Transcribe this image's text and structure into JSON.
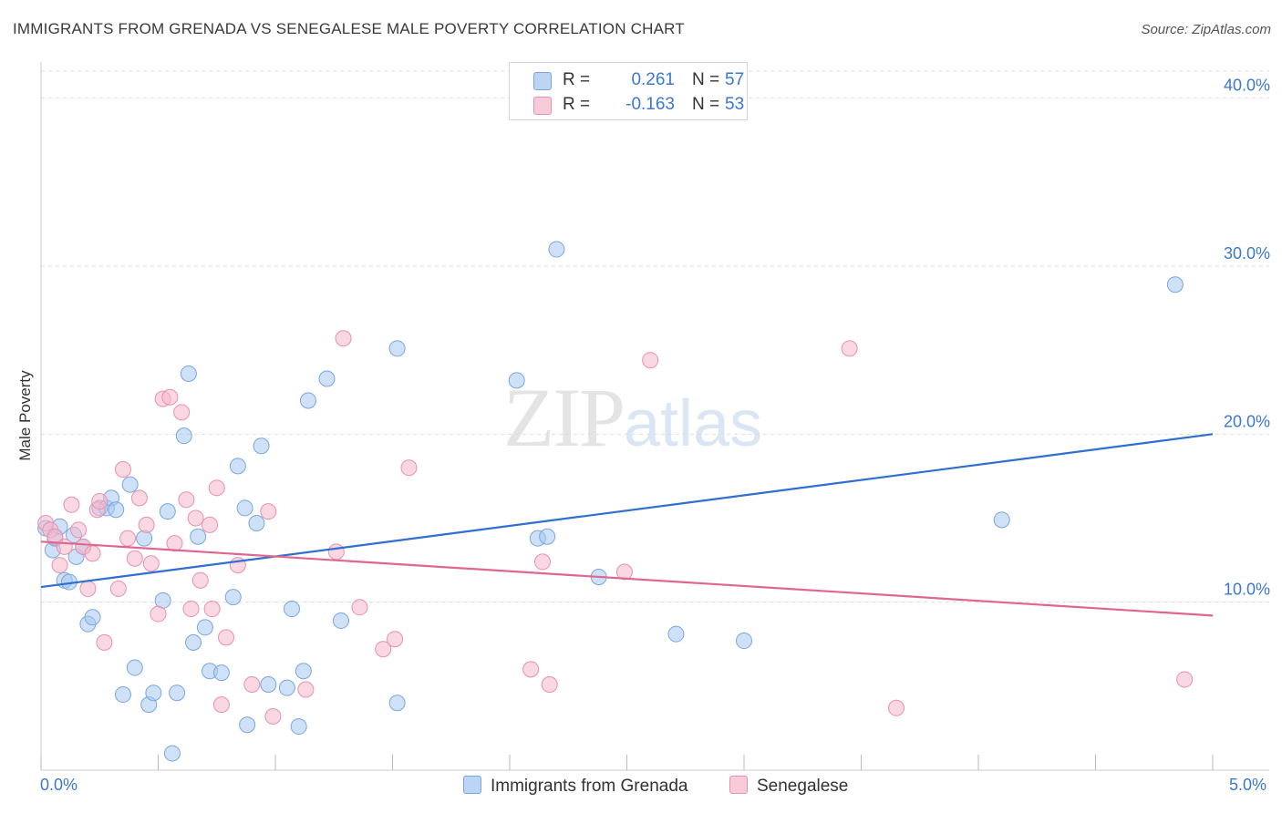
{
  "title": "IMMIGRANTS FROM GRENADA VS SENEGALESE MALE POVERTY CORRELATION CHART",
  "source": "Source: ZipAtlas.com",
  "watermark": {
    "zip": "ZIP",
    "atlas": "atlas"
  },
  "legend_top": [
    {
      "r_label": "R =",
      "r_value": "0.261",
      "n_label": "N =",
      "n_value": "57"
    },
    {
      "r_label": "R =",
      "r_value": "-0.163",
      "n_label": "N =",
      "n_value": "53"
    }
  ],
  "chart_data": {
    "type": "scatter",
    "title": "IMMIGRANTS FROM GRENADA VS SENEGALESE MALE POVERTY CORRELATION CHART",
    "xlabel": "",
    "ylabel": "Male Poverty",
    "xlim": [
      0,
      5.0
    ],
    "ylim": [
      0,
      41.5
    ],
    "x_tick_labels": [
      "0.0%",
      "5.0%"
    ],
    "y_ticks": [
      10,
      20,
      30,
      40
    ],
    "y_tick_labels": [
      "10.0%",
      "20.0%",
      "30.0%",
      "40.0%"
    ],
    "grid": true,
    "legend_position": "bottom-center",
    "colors": {
      "series1_fill": "#a8c8f0",
      "series1_stroke": "#7aa6dc",
      "series1_line": "#2e6fd0",
      "series2_fill": "#f6b8cc",
      "series2_stroke": "#e890ae",
      "series2_line": "#e0668f",
      "tick_label": "#3b78d0",
      "grid": "#dcdcdc"
    },
    "series": [
      {
        "name": "Immigrants from Grenada",
        "r": 0.261,
        "n": 57,
        "trend": {
          "x": [
            0,
            5.0
          ],
          "y": [
            10.9,
            20.0
          ]
        },
        "points": [
          [
            0.02,
            14.4
          ],
          [
            0.05,
            13.1
          ],
          [
            0.06,
            13.8
          ],
          [
            0.08,
            14.5
          ],
          [
            0.1,
            11.3
          ],
          [
            0.12,
            11.2
          ],
          [
            0.15,
            12.7
          ],
          [
            0.18,
            13.3
          ],
          [
            0.2,
            8.7
          ],
          [
            0.22,
            9.1
          ],
          [
            0.25,
            15.6
          ],
          [
            0.28,
            15.6
          ],
          [
            0.3,
            16.2
          ],
          [
            0.32,
            15.5
          ],
          [
            0.35,
            4.5
          ],
          [
            0.38,
            17.0
          ],
          [
            0.4,
            6.1
          ],
          [
            0.44,
            13.8
          ],
          [
            0.46,
            3.9
          ],
          [
            0.48,
            4.6
          ],
          [
            0.52,
            10.1
          ],
          [
            0.54,
            15.4
          ],
          [
            0.56,
            1.0
          ],
          [
            0.58,
            4.6
          ],
          [
            0.61,
            19.9
          ],
          [
            0.63,
            23.6
          ],
          [
            0.65,
            7.6
          ],
          [
            0.67,
            13.9
          ],
          [
            0.7,
            8.5
          ],
          [
            0.72,
            5.9
          ],
          [
            0.77,
            5.8
          ],
          [
            0.82,
            10.3
          ],
          [
            0.84,
            18.1
          ],
          [
            0.87,
            15.6
          ],
          [
            0.88,
            2.7
          ],
          [
            0.92,
            14.7
          ],
          [
            0.94,
            19.3
          ],
          [
            0.97,
            5.1
          ],
          [
            1.05,
            4.9
          ],
          [
            1.07,
            9.6
          ],
          [
            1.1,
            2.6
          ],
          [
            1.12,
            5.9
          ],
          [
            1.14,
            22.0
          ],
          [
            1.22,
            23.3
          ],
          [
            1.28,
            8.9
          ],
          [
            1.52,
            25.1
          ],
          [
            1.52,
            4.0
          ],
          [
            2.03,
            23.2
          ],
          [
            2.12,
            13.8
          ],
          [
            2.16,
            13.9
          ],
          [
            2.2,
            31.0
          ],
          [
            2.38,
            11.5
          ],
          [
            2.71,
            8.1
          ],
          [
            3.0,
            7.7
          ],
          [
            4.1,
            14.9
          ],
          [
            4.84,
            28.9
          ],
          [
            0.14,
            14.0
          ]
        ]
      },
      {
        "name": "Senegalese",
        "r": -0.163,
        "n": 53,
        "trend": {
          "x": [
            0,
            5.0
          ],
          "y": [
            13.6,
            9.2
          ]
        },
        "points": [
          [
            0.02,
            14.7
          ],
          [
            0.04,
            14.3
          ],
          [
            0.06,
            13.9
          ],
          [
            0.08,
            12.2
          ],
          [
            0.1,
            13.3
          ],
          [
            0.13,
            15.8
          ],
          [
            0.16,
            14.3
          ],
          [
            0.18,
            13.3
          ],
          [
            0.2,
            10.8
          ],
          [
            0.22,
            12.9
          ],
          [
            0.24,
            15.5
          ],
          [
            0.27,
            7.6
          ],
          [
            0.33,
            10.8
          ],
          [
            0.35,
            17.9
          ],
          [
            0.37,
            13.8
          ],
          [
            0.4,
            12.6
          ],
          [
            0.42,
            16.2
          ],
          [
            0.45,
            14.6
          ],
          [
            0.47,
            12.3
          ],
          [
            0.5,
            9.3
          ],
          [
            0.52,
            22.1
          ],
          [
            0.55,
            22.2
          ],
          [
            0.57,
            13.5
          ],
          [
            0.6,
            21.3
          ],
          [
            0.62,
            16.1
          ],
          [
            0.64,
            9.6
          ],
          [
            0.66,
            15.0
          ],
          [
            0.68,
            11.3
          ],
          [
            0.72,
            14.6
          ],
          [
            0.73,
            9.6
          ],
          [
            0.75,
            16.8
          ],
          [
            0.77,
            3.9
          ],
          [
            0.79,
            7.9
          ],
          [
            0.84,
            12.2
          ],
          [
            0.9,
            5.1
          ],
          [
            0.97,
            15.4
          ],
          [
            0.99,
            3.2
          ],
          [
            1.13,
            4.8
          ],
          [
            1.26,
            13.0
          ],
          [
            1.29,
            25.7
          ],
          [
            1.36,
            9.7
          ],
          [
            1.46,
            7.2
          ],
          [
            1.51,
            7.8
          ],
          [
            1.57,
            18.0
          ],
          [
            2.09,
            6.0
          ],
          [
            2.14,
            12.4
          ],
          [
            2.17,
            5.1
          ],
          [
            2.49,
            11.8
          ],
          [
            2.6,
            24.4
          ],
          [
            3.45,
            25.1
          ],
          [
            3.65,
            3.7
          ],
          [
            4.88,
            5.4
          ],
          [
            0.25,
            16.0
          ]
        ]
      }
    ]
  }
}
